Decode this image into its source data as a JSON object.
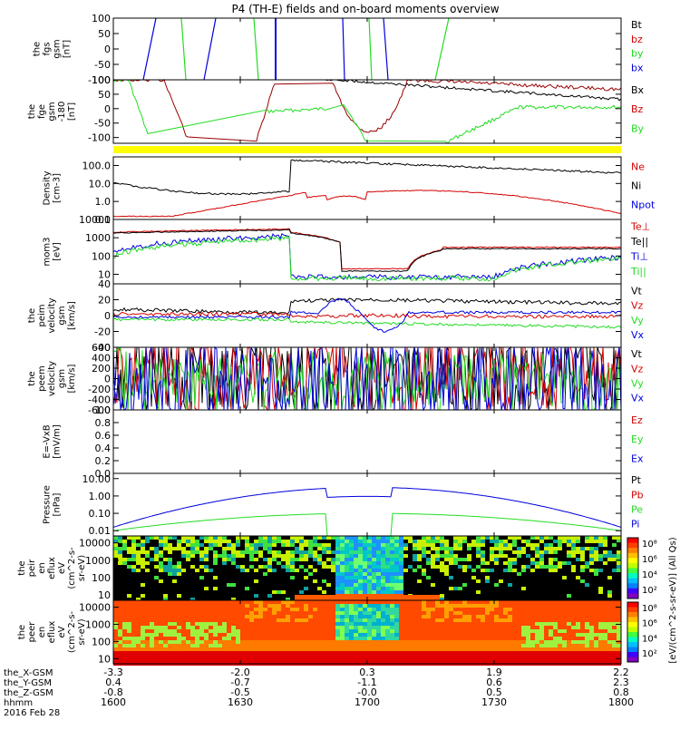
{
  "title": "P4 (TH-E) fields and on-board moments overview",
  "colors": {
    "black": "#000000",
    "red": "#d40000",
    "green": "#22dd22",
    "blue": "#0000dd",
    "yellow": "#ffff00",
    "dark_red": "#990000"
  },
  "chart_data": [
    {
      "type": "line",
      "ylabel_lines": [
        "the",
        "fgs",
        "gsm",
        "[nT]"
      ],
      "yticks": [
        "100",
        "50",
        "0",
        "-50",
        "-100"
      ],
      "ylim": [
        -100,
        100
      ],
      "legend": [
        {
          "label": "Bt",
          "color": "black"
        },
        {
          "label": "bz",
          "color": "red"
        },
        {
          "label": "by",
          "color": "green"
        },
        {
          "label": "bx",
          "color": "blue"
        }
      ]
    },
    {
      "type": "line",
      "ylabel_lines": [
        "the",
        "fge",
        "gsm",
        "-180",
        "[nT]"
      ],
      "yticks": [
        "100",
        "50",
        "0",
        "-50",
        "-100"
      ],
      "ylim": [
        -120,
        100
      ],
      "legend": [
        {
          "label": "Bx",
          "color": "black"
        },
        {
          "label": "Bz",
          "color": "red"
        },
        {
          "label": "By",
          "color": "green"
        }
      ]
    },
    {
      "type": "line",
      "ylabel_lines": [
        "Density",
        "[cm-3]"
      ],
      "yticks": [
        "100.0",
        "10.0",
        "1.0",
        "0.1"
      ],
      "ylim": [
        0.1,
        300
      ],
      "yscale": "log",
      "legend": [
        {
          "label": "Ne",
          "color": "red"
        },
        {
          "label": "Ni",
          "color": "black"
        },
        {
          "label": "Npot",
          "color": "blue"
        }
      ]
    },
    {
      "type": "line",
      "ylabel_lines": [
        "mom3",
        "[eV]"
      ],
      "yticks": [
        "10000",
        "1000",
        "100",
        "10"
      ],
      "ylim": [
        3,
        10000
      ],
      "yscale": "log",
      "legend": [
        {
          "label": "Te⊥",
          "color": "red"
        },
        {
          "label": "Te||",
          "color": "black"
        },
        {
          "label": "Ti⊥",
          "color": "blue"
        },
        {
          "label": "Ti||",
          "color": "green"
        }
      ]
    },
    {
      "type": "line",
      "ylabel_lines": [
        "the",
        "peim",
        "velocity",
        "gsm",
        "[km/s]"
      ],
      "yticks": [
        "40",
        "20",
        "0",
        "-20",
        "-40"
      ],
      "ylim": [
        -40,
        40
      ],
      "legend": [
        {
          "label": "Vt",
          "color": "black"
        },
        {
          "label": "Vz",
          "color": "red"
        },
        {
          "label": "Vy",
          "color": "green"
        },
        {
          "label": "Vx",
          "color": "blue"
        }
      ]
    },
    {
      "type": "line",
      "ylabel_lines": [
        "the",
        "peem",
        "velocity",
        "gsm",
        "[km/s]"
      ],
      "yticks": [
        "600",
        "400",
        "200",
        "0",
        "-200",
        "-400",
        "-600"
      ],
      "ylim": [
        -600,
        600
      ],
      "legend": [
        {
          "label": "Vt",
          "color": "black"
        },
        {
          "label": "Vz",
          "color": "red"
        },
        {
          "label": "Vy",
          "color": "green"
        },
        {
          "label": "Vx",
          "color": "blue"
        }
      ]
    },
    {
      "type": "line",
      "ylabel_lines": [
        "E=-VxB",
        "[mV/m]"
      ],
      "yticks": [
        "1.0",
        "0.8",
        "0.6",
        "0.4",
        "0.2",
        "0.0"
      ],
      "ylim": [
        0,
        1
      ],
      "legend": [
        {
          "label": "Ez",
          "color": "red"
        },
        {
          "label": "Ey",
          "color": "green"
        },
        {
          "label": "Ex",
          "color": "blue"
        }
      ]
    },
    {
      "type": "line",
      "ylabel_lines": [
        "Pressure",
        "[nPa]"
      ],
      "yticks": [
        "10.00",
        "1.00",
        "0.10",
        "0.01"
      ],
      "ylim": [
        0.005,
        20
      ],
      "yscale": "log",
      "legend": [
        {
          "label": "Pt",
          "color": "black"
        },
        {
          "label": "Pb",
          "color": "red"
        },
        {
          "label": "Pe",
          "color": "green"
        },
        {
          "label": "Pi",
          "color": "blue"
        }
      ]
    },
    {
      "type": "heatmap",
      "ylabel_lines": [
        "the",
        "peir",
        "en",
        "eflux",
        "eV",
        "(cm^2-s-",
        "sr-eV)"
      ],
      "yticks": [
        "10000",
        "1000",
        "100",
        "10"
      ],
      "ylim": [
        5,
        25000
      ],
      "yscale": "log"
    },
    {
      "type": "heatmap",
      "ylabel_lines": [
        "the",
        "peer",
        "en",
        "eflux",
        "eV",
        "(cm^2-s-",
        "sr-eV)"
      ],
      "yticks": [
        "10000",
        "1000",
        "100",
        "10"
      ],
      "ylim": [
        5,
        25000
      ],
      "yscale": "log"
    }
  ],
  "colorbar": {
    "label": "[eV/(cm^2-s-sr-eV)] (All Qs)",
    "ticks": [
      "10⁸",
      "10⁶",
      "10⁴",
      "10²"
    ],
    "ticks_lower": [
      "10⁸",
      "10⁶",
      "10⁴",
      "10²"
    ]
  },
  "xaxis": {
    "row_labels": [
      "the_X-GSM",
      "the_Y-GSM",
      "the_Z-GSM",
      "hhmm",
      "2016 Feb 28"
    ],
    "ticks": [
      {
        "x": "-3.3",
        "y": "0.4",
        "z": "-0.8",
        "t": "1600"
      },
      {
        "x": "-2.0",
        "y": "-0.7",
        "z": "-0.5",
        "t": "1630"
      },
      {
        "x": "0.3",
        "y": "-1.1",
        "z": "-0.0",
        "t": "1700"
      },
      {
        "x": "1.9",
        "y": "0.6",
        "z": "0.5",
        "t": "1730"
      },
      {
        "x": "2.2",
        "y": "2.3",
        "z": "0.8",
        "t": "1800"
      }
    ]
  }
}
